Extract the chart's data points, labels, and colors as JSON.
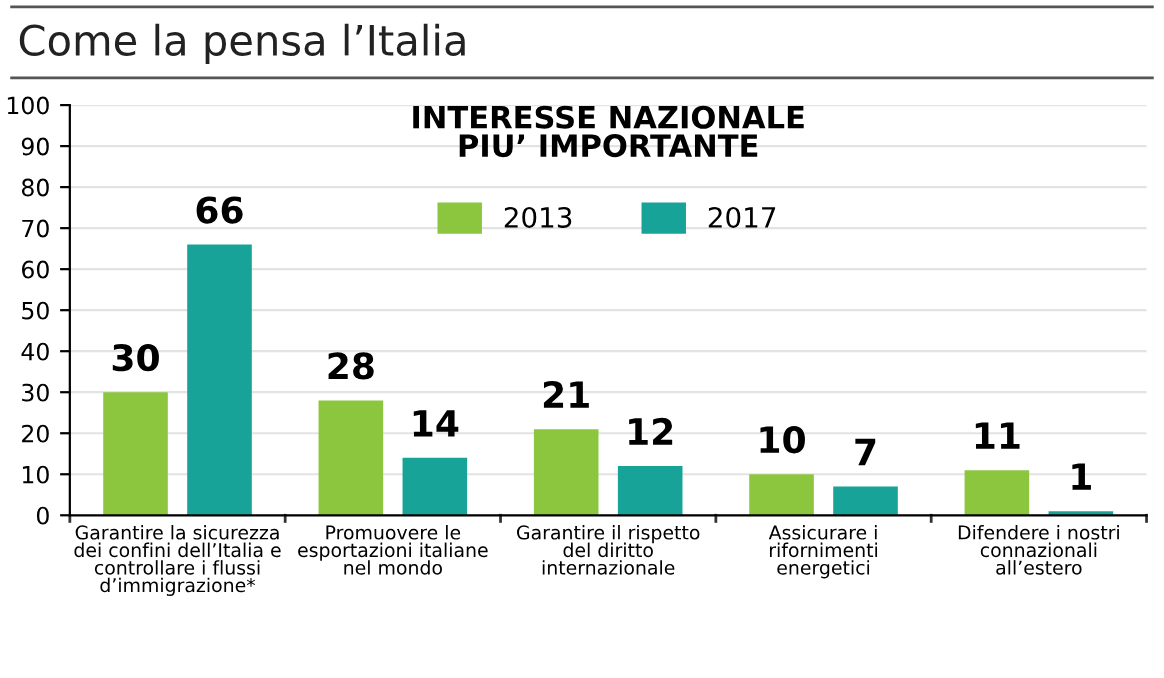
{
  "chart_data": {
    "type": "bar",
    "title": "Come la pensa l’Italia",
    "subtitle": "INTERESSE NAZIONALE\nPIU’ IMPORTANTE",
    "categories": [
      "Garantire la sicurezza\ndei confini dell’Italia e\ncontrollare i flussi\nd’immigrazione*",
      "Promuovere le\nesportazioni italiane\nnel mondo",
      "Garantire il rispetto\ndel diritto\ninternazionale",
      "Assicurare i\nrifornimenti\nenergetici",
      "Difendere i nostri\nconnazionali\nall’estero"
    ],
    "series": [
      {
        "name": "2013",
        "color": "#8cc63f",
        "values": [
          30,
          28,
          21,
          10,
          11
        ]
      },
      {
        "name": "2017",
        "color": "#17a398",
        "values": [
          66,
          14,
          12,
          7,
          1
        ]
      }
    ],
    "ylim": [
      0,
      100
    ],
    "yticks": [
      0,
      10,
      20,
      30,
      40,
      50,
      60,
      70,
      80,
      90,
      100
    ],
    "grid": "y",
    "legend": "top",
    "data_labels": true
  }
}
